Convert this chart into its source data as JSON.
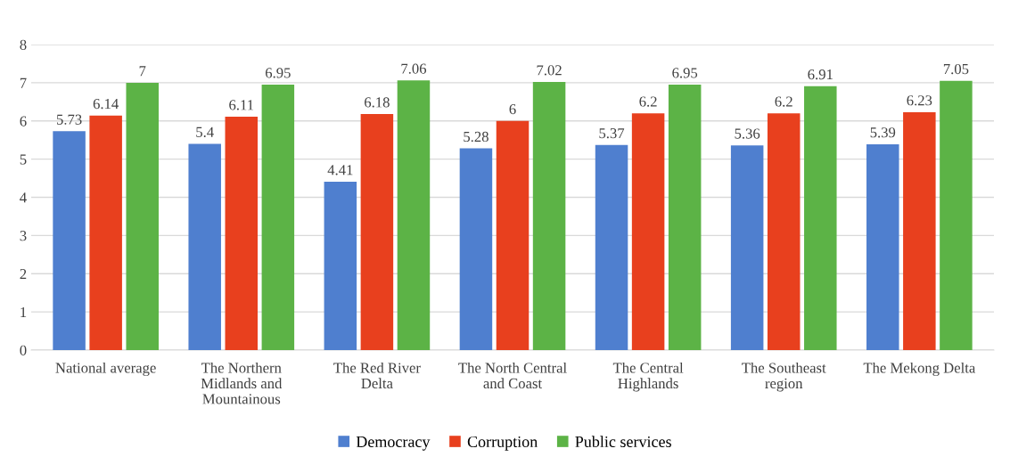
{
  "chart_data": {
    "type": "bar",
    "categories": [
      "National average",
      "The Northern\nMidlands and\nMountainous",
      "The Red River\nDelta",
      "The North Central\nand Coast",
      "The Central\nHighlands",
      "The Southeast\nregion",
      "The Mekong Delta"
    ],
    "series": [
      {
        "name": "Democracy",
        "color": "#4f7fcf",
        "values": [
          5.73,
          5.4,
          4.41,
          5.28,
          5.37,
          5.36,
          5.39
        ]
      },
      {
        "name": "Corruption",
        "color": "#e8401e",
        "values": [
          6.14,
          6.11,
          6.18,
          6,
          6.2,
          6.2,
          6.23
        ]
      },
      {
        "name": "Public services",
        "color": "#5cb346",
        "values": [
          7,
          6.95,
          7.06,
          7.02,
          6.95,
          6.91,
          7.05
        ]
      }
    ],
    "ylim": [
      0,
      8
    ],
    "yticks": [
      0,
      1,
      2,
      3,
      4,
      5,
      6,
      7,
      8
    ],
    "grid": "y",
    "legend": "bottom",
    "data_labels": true
  }
}
